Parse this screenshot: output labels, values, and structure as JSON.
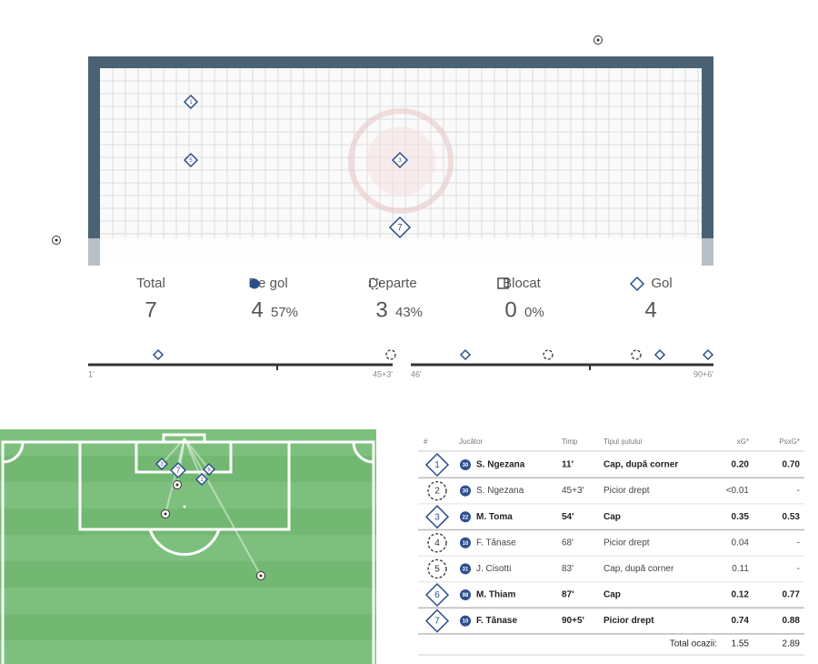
{
  "stats": [
    {
      "label": "Total",
      "value": "7"
    },
    {
      "label": "De gol",
      "value": "4",
      "percent": "57%"
    },
    {
      "label": "Departe",
      "value": "3",
      "percent": "43%"
    },
    {
      "label": "Blocat",
      "value": "0",
      "percent": "0%"
    },
    {
      "label": "Gol",
      "value": "4"
    }
  ],
  "goal_view": {
    "shots": [
      "1",
      "5",
      "3",
      "7"
    ]
  },
  "timeline": {
    "first_half": {
      "start": "1'",
      "end": "45+3'"
    },
    "second_half": {
      "start": "46'",
      "end": "90+6'"
    }
  },
  "pitch": {
    "shots": [
      "3",
      "7",
      "6",
      "1"
    ]
  },
  "table": {
    "headers": [
      "#",
      "Jucător",
      "Timp",
      "Tipul șutului",
      "xG*",
      "PsxG*"
    ],
    "rows": [
      {
        "n": "1",
        "badge": "30",
        "player": "S. Ngezana",
        "time": "11'",
        "type": "Cap, după corner",
        "xg": "0.20",
        "psxg": "0.70",
        "goal": true
      },
      {
        "n": "2",
        "badge": "30",
        "player": "S. Ngezana",
        "time": "45+3'",
        "type": "Picior drept",
        "xg": "<0.01",
        "psxg": "-",
        "goal": false
      },
      {
        "n": "3",
        "badge": "22",
        "player": "M. Toma",
        "time": "54'",
        "type": "Cap",
        "xg": "0.35",
        "psxg": "0.53",
        "goal": true
      },
      {
        "n": "4",
        "badge": "10",
        "player": "F. Tănase",
        "time": "68'",
        "type": "Picior drept",
        "xg": "0.04",
        "psxg": "-",
        "goal": false
      },
      {
        "n": "5",
        "badge": "31",
        "player": "J. Cisotti",
        "time": "83'",
        "type": "Cap, după corner",
        "xg": "0.11",
        "psxg": "-",
        "goal": false
      },
      {
        "n": "6",
        "badge": "98",
        "player": "M. Thiam",
        "time": "87'",
        "type": "Cap",
        "xg": "0.12",
        "psxg": "0.77",
        "goal": true
      },
      {
        "n": "7",
        "badge": "10",
        "player": "F. Tănase",
        "time": "90+5'",
        "type": "Picior drept",
        "xg": "0.74",
        "psxg": "0.88",
        "goal": true
      }
    ],
    "total": {
      "label": "Total ocazii:",
      "xg": "1.55",
      "psxg": "2.89"
    }
  }
}
